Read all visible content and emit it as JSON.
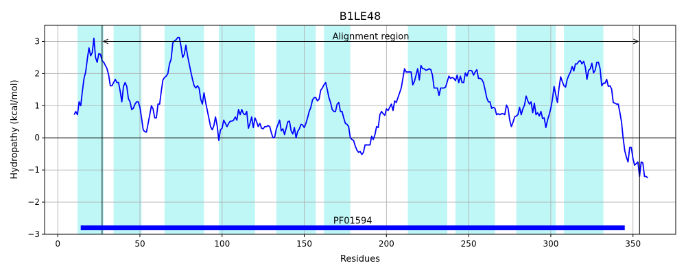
{
  "chart_data": {
    "type": "line",
    "title": "B1LE48",
    "xlabel": "Residues",
    "ylabel": "Hydropathy (kcal/mol)",
    "xlim": [
      -8,
      376
    ],
    "ylim": [
      -3,
      3.5
    ],
    "xticks": [
      0,
      50,
      100,
      150,
      200,
      250,
      300,
      350
    ],
    "yticks": [
      -3,
      -2,
      -1,
      0,
      1,
      2,
      3
    ],
    "grid": true,
    "colors": {
      "line": "#0000ff",
      "regions": "#bff7f7",
      "domain_bar": "#0000ff",
      "grid": "#b0b0b0",
      "axes": "#000000"
    },
    "helix_regions": [
      [
        12,
        28
      ],
      [
        34,
        51
      ],
      [
        65,
        89
      ],
      [
        98,
        120
      ],
      [
        133,
        157
      ],
      [
        162,
        178
      ],
      [
        213,
        237
      ],
      [
        242,
        266
      ],
      [
        279,
        303
      ],
      [
        308,
        332
      ]
    ],
    "alignment_region": {
      "label": "Alignment region",
      "start": 27,
      "end": 354,
      "y": 3.0
    },
    "domain": {
      "label": "PF01594",
      "start": 14,
      "end": 345,
      "y": -2.8
    },
    "series": [
      {
        "x": [
          10,
          11,
          12,
          13,
          14,
          15,
          16,
          17,
          18,
          19,
          20,
          21,
          22,
          23,
          24,
          25,
          26,
          27,
          28,
          29,
          30,
          31,
          32,
          33,
          34,
          35,
          36,
          37,
          38,
          39,
          40,
          41,
          42,
          43,
          44,
          45,
          46,
          47,
          48,
          49,
          50,
          51,
          52,
          53,
          54,
          55,
          56,
          57,
          58,
          59,
          60,
          61,
          62,
          63,
          64,
          65,
          66,
          67,
          68,
          69,
          70,
          71,
          72,
          73,
          74,
          75,
          76,
          77,
          78,
          79,
          80,
          81,
          82,
          83,
          84,
          85,
          86,
          87,
          88,
          89,
          90,
          91,
          92,
          93,
          94,
          95,
          96,
          97,
          98,
          99,
          100,
          101,
          102,
          103,
          104,
          105,
          106,
          107,
          108,
          109,
          110,
          111,
          112,
          113,
          114,
          115,
          116,
          117,
          118,
          119,
          120,
          121,
          122,
          123,
          124,
          125,
          126,
          127,
          128,
          129,
          130,
          131,
          132,
          133,
          134,
          135,
          136,
          137,
          138,
          139,
          140,
          141,
          142,
          143,
          144,
          145,
          146,
          147,
          148,
          149,
          150,
          151,
          152,
          153,
          154,
          155,
          156,
          157,
          158,
          159,
          160,
          161,
          162,
          163,
          164,
          165,
          166,
          167,
          168,
          169,
          170,
          171,
          172,
          173,
          174,
          175,
          176,
          177,
          178,
          179,
          180,
          181,
          182,
          183,
          184,
          185,
          186,
          187,
          188,
          189,
          190,
          191,
          192,
          193,
          194,
          195,
          196,
          197,
          198,
          199,
          200,
          201,
          202,
          203,
          204,
          205,
          206,
          207,
          208,
          209,
          210,
          211,
          212,
          213,
          214,
          215,
          216,
          217,
          218,
          219,
          220,
          221,
          222,
          223,
          224,
          225,
          226,
          227,
          228,
          229,
          230,
          231,
          232,
          233,
          234,
          235,
          236,
          237,
          238,
          239,
          240,
          241,
          242,
          243,
          244,
          245,
          246,
          247,
          248,
          249,
          250,
          251,
          252,
          253,
          254,
          255,
          256,
          257,
          258,
          259,
          260,
          261,
          262,
          263,
          264,
          265,
          266,
          267,
          268,
          269,
          270,
          271,
          272,
          273,
          274,
          275,
          276,
          277,
          278,
          279,
          280,
          281,
          282,
          283,
          284,
          285,
          286,
          287,
          288,
          289,
          290,
          291,
          292,
          293,
          294,
          295,
          296,
          297,
          298,
          299,
          300,
          301,
          302,
          303,
          304,
          305,
          306,
          307,
          308,
          309,
          310,
          311,
          312,
          313,
          314,
          315,
          316,
          317,
          318,
          319,
          320,
          321,
          322,
          323,
          324,
          325,
          326,
          327,
          328,
          329,
          330,
          331,
          332,
          333,
          334,
          335,
          336,
          337,
          338,
          339,
          340,
          341,
          342,
          343,
          344,
          345,
          346,
          347,
          348,
          349,
          350,
          351,
          352,
          353,
          354,
          355,
          356,
          357,
          358,
          359
        ],
        "y": [
          0.72,
          0.82,
          0.72,
          1.12,
          1.0,
          1.45,
          1.85,
          2.05,
          2.45,
          2.8,
          2.55,
          2.65,
          3.1,
          2.5,
          2.35,
          2.62,
          2.6,
          2.4,
          2.35,
          2.25,
          2.15,
          1.95,
          1.62,
          1.62,
          1.72,
          1.82,
          1.72,
          1.72,
          1.45,
          1.12,
          1.6,
          1.72,
          1.6,
          1.22,
          1.12,
          0.88,
          0.92,
          1.05,
          1.12,
          1.12,
          0.95,
          0.62,
          0.25,
          0.19,
          0.18,
          0.45,
          0.72,
          1.0,
          0.9,
          0.62,
          0.62,
          1.05,
          1.05,
          1.45,
          1.8,
          1.88,
          1.92,
          2.0,
          2.3,
          2.45,
          2.95,
          3.02,
          3.05,
          3.12,
          3.12,
          2.85,
          2.5,
          2.6,
          2.88,
          2.55,
          2.3,
          2.05,
          1.82,
          1.62,
          1.55,
          1.62,
          1.55,
          1.2,
          1.05,
          1.4,
          1.1,
          0.85,
          0.6,
          0.35,
          0.25,
          0.38,
          0.65,
          0.38,
          -0.08,
          0.25,
          0.3,
          0.55,
          0.45,
          0.35,
          0.45,
          0.52,
          0.52,
          0.55,
          0.65,
          0.55,
          0.88,
          0.72,
          0.88,
          0.75,
          0.72,
          0.82,
          0.3,
          0.45,
          0.65,
          0.32,
          0.62,
          0.5,
          0.35,
          0.45,
          0.3,
          0.28,
          0.35,
          0.35,
          0.38,
          0.35,
          0.15,
          0.0,
          0.02,
          0.28,
          0.42,
          0.55,
          0.22,
          0.28,
          0.1,
          0.3,
          0.5,
          0.52,
          0.22,
          0.12,
          0.32,
          0.0,
          0.2,
          0.28,
          0.42,
          0.4,
          0.32,
          0.45,
          0.62,
          0.82,
          0.95,
          1.18,
          1.25,
          1.25,
          1.15,
          1.2,
          1.48,
          1.55,
          1.65,
          1.72,
          1.5,
          1.25,
          1.1,
          0.88,
          0.82,
          0.82,
          1.05,
          1.1,
          0.82,
          0.82,
          0.62,
          0.45,
          0.42,
          0.35,
          0.0,
          -0.05,
          -0.08,
          -0.25,
          -0.38,
          -0.45,
          -0.42,
          -0.52,
          -0.45,
          -0.22,
          -0.22,
          -0.22,
          -0.22,
          0.05,
          -0.05,
          0.1,
          0.35,
          0.32,
          0.72,
          0.82,
          0.75,
          0.7,
          0.9,
          0.85,
          0.95,
          1.05,
          0.85,
          1.15,
          1.1,
          1.25,
          1.4,
          1.55,
          1.85,
          2.15,
          2.05,
          2.05,
          2.05,
          2.05,
          1.65,
          1.75,
          1.95,
          2.15,
          1.8,
          2.25,
          2.15,
          2.15,
          2.1,
          2.12,
          2.15,
          2.12,
          1.95,
          1.55,
          1.55,
          1.55,
          1.32,
          1.55,
          1.55,
          1.55,
          1.58,
          1.75,
          1.92,
          1.85,
          1.88,
          1.85,
          1.78,
          1.95,
          1.72,
          1.92,
          1.72,
          1.72,
          2.02,
          1.92,
          2.08,
          2.1,
          2.08,
          1.95,
          2.05,
          2.12,
          1.85,
          1.85,
          1.82,
          1.72,
          1.5,
          1.25,
          1.12,
          1.12,
          0.92,
          0.95,
          0.92,
          0.72,
          0.75,
          0.72,
          0.75,
          0.75,
          0.72,
          1.02,
          0.92,
          0.55,
          0.35,
          0.48,
          0.65,
          0.68,
          0.72,
          0.95,
          0.72,
          0.9,
          1.02,
          1.3,
          1.15,
          1.05,
          1.12,
          0.78,
          1.08,
          0.72,
          0.78,
          0.68,
          0.82,
          0.6,
          0.62,
          0.32,
          0.55,
          0.72,
          0.92,
          1.2,
          1.6,
          1.35,
          1.1,
          1.55,
          1.9,
          1.75,
          1.62,
          1.58,
          1.82,
          1.95,
          2.05,
          2.22,
          2.08,
          2.3,
          2.3,
          2.38,
          2.4,
          2.3,
          2.38,
          2.2,
          1.82,
          2.1,
          2.15,
          2.32,
          2.02,
          2.1,
          2.35,
          2.35,
          2.15,
          1.62,
          1.7,
          1.7,
          1.82,
          1.6,
          1.62,
          1.52,
          1.1,
          1.08,
          1.05,
          1.05,
          0.8,
          0.5,
          0.0,
          -0.4,
          -0.6,
          -0.75,
          -0.3,
          -0.3,
          -0.65,
          -0.85,
          -0.8,
          -0.75,
          -1.2,
          -0.75,
          -0.78,
          -1.2,
          -1.2,
          -1.25
        ]
      }
    ]
  }
}
